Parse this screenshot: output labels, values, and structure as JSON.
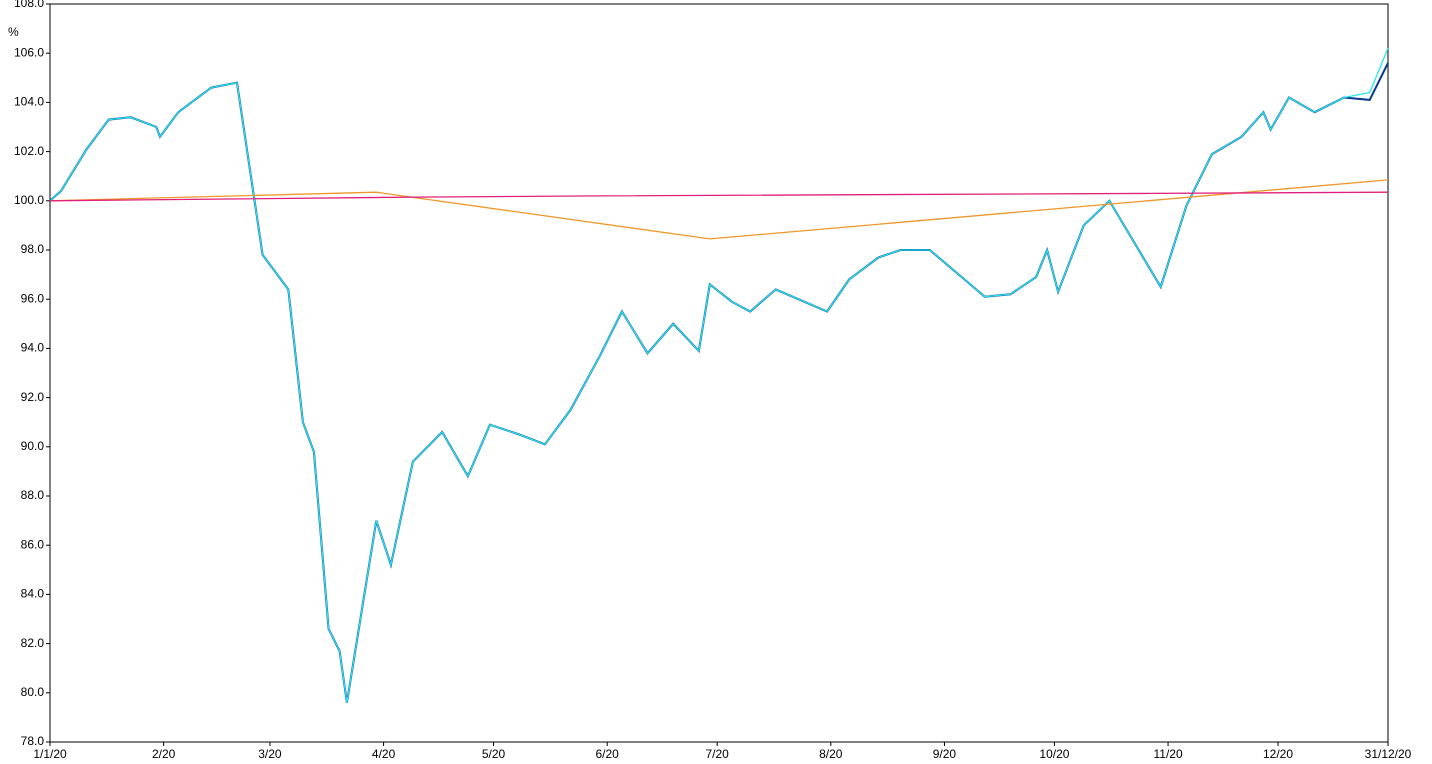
{
  "chart_data": {
    "type": "line",
    "y_unit": "%",
    "xlim": [
      0,
      365
    ],
    "ylim": [
      78,
      108
    ],
    "yticks": [
      {
        "value": 78,
        "label": "78.0"
      },
      {
        "value": 80,
        "label": "80.0"
      },
      {
        "value": 82,
        "label": "82.0"
      },
      {
        "value": 84,
        "label": "84.0"
      },
      {
        "value": 86,
        "label": "86.0"
      },
      {
        "value": 88,
        "label": "88.0"
      },
      {
        "value": 90,
        "label": "90.0"
      },
      {
        "value": 92,
        "label": "92.0"
      },
      {
        "value": 94,
        "label": "94.0"
      },
      {
        "value": 96,
        "label": "96.0"
      },
      {
        "value": 98,
        "label": "98.0"
      },
      {
        "value": 100,
        "label": "100.0"
      },
      {
        "value": 102,
        "label": "102.0"
      },
      {
        "value": 104,
        "label": "104.0"
      },
      {
        "value": 106,
        "label": "106.0"
      },
      {
        "value": 108,
        "label": "108.0"
      }
    ],
    "xticks": [
      {
        "value": 0,
        "label": "1/1/20"
      },
      {
        "value": 31,
        "label": "2/20"
      },
      {
        "value": 60,
        "label": "3/20"
      },
      {
        "value": 91,
        "label": "4/20"
      },
      {
        "value": 121,
        "label": "5/20"
      },
      {
        "value": 152,
        "label": "6/20"
      },
      {
        "value": 182,
        "label": "7/20"
      },
      {
        "value": 213,
        "label": "8/20"
      },
      {
        "value": 244,
        "label": "9/20"
      },
      {
        "value": 274,
        "label": "10/20"
      },
      {
        "value": 305,
        "label": "11/20"
      },
      {
        "value": 335,
        "label": "12/20"
      },
      {
        "value": 365,
        "label": "31/12/20"
      }
    ],
    "series": [
      {
        "color": "#0a3a8a",
        "x": [
          0,
          3,
          10,
          16,
          22,
          29,
          30,
          35,
          44,
          51,
          58,
          65,
          69,
          72,
          76,
          79,
          81,
          89,
          93,
          99,
          107,
          114,
          120,
          128,
          135,
          142,
          150,
          156,
          163,
          170,
          177,
          180,
          186,
          191,
          198,
          212,
          218,
          226,
          232,
          240,
          255,
          262,
          269,
          272,
          275,
          282,
          289,
          303,
          310,
          317,
          325,
          331,
          333,
          338,
          345,
          353,
          360,
          365
        ],
        "values": [
          100,
          100.4,
          102.1,
          103.3,
          103.4,
          103.0,
          102.6,
          103.6,
          104.6,
          104.8,
          97.8,
          96.4,
          91.0,
          89.8,
          82.6,
          81.7,
          79.6,
          87.0,
          85.2,
          89.4,
          90.6,
          88.8,
          90.9,
          90.5,
          90.1,
          91.5,
          93.7,
          95.5,
          93.8,
          95.0,
          93.9,
          96.6,
          95.9,
          95.5,
          96.4,
          95.5,
          96.8,
          97.7,
          98.0,
          98.0,
          96.1,
          96.2,
          96.9,
          98.0,
          96.3,
          99.0,
          100.0,
          96.5,
          99.8,
          101.9,
          102.6,
          103.6,
          102.9,
          104.2,
          103.6,
          104.2,
          104.1,
          105.6
        ]
      },
      {
        "color": "#22e5f0",
        "x": [
          0,
          3,
          10,
          16,
          22,
          29,
          30,
          35,
          44,
          51,
          58,
          65,
          69,
          72,
          76,
          79,
          81,
          89,
          93,
          99,
          107,
          114,
          120,
          128,
          135,
          142,
          150,
          156,
          163,
          170,
          177,
          180,
          186,
          191,
          198,
          212,
          218,
          226,
          232,
          240,
          255,
          262,
          269,
          272,
          275,
          282,
          289,
          303,
          310,
          317,
          325,
          331,
          333,
          338,
          345,
          353,
          360,
          365
        ],
        "values": [
          100,
          100.4,
          102.1,
          103.3,
          103.4,
          103.0,
          102.6,
          103.6,
          104.6,
          104.8,
          97.8,
          96.4,
          91.0,
          89.8,
          82.6,
          81.7,
          79.6,
          87.0,
          85.2,
          89.4,
          90.6,
          88.8,
          90.9,
          90.5,
          90.1,
          91.5,
          93.7,
          95.5,
          93.8,
          95.0,
          93.9,
          96.6,
          95.9,
          95.5,
          96.4,
          95.5,
          96.8,
          97.7,
          98.0,
          98.0,
          96.1,
          96.2,
          96.9,
          98.0,
          96.3,
          99.0,
          100.0,
          96.5,
          99.8,
          101.9,
          102.6,
          103.6,
          102.9,
          104.2,
          103.6,
          104.2,
          104.4,
          106.2
        ]
      },
      {
        "color": "#f0962a",
        "x": [
          0,
          89,
          180,
          365
        ],
        "values": [
          100,
          100.35,
          98.45,
          100.85
        ]
      },
      {
        "color": "#e0207a",
        "x": [
          0,
          100,
          150,
          300,
          365
        ],
        "values": [
          100,
          100.15,
          100.2,
          100.3,
          100.35
        ]
      }
    ]
  }
}
